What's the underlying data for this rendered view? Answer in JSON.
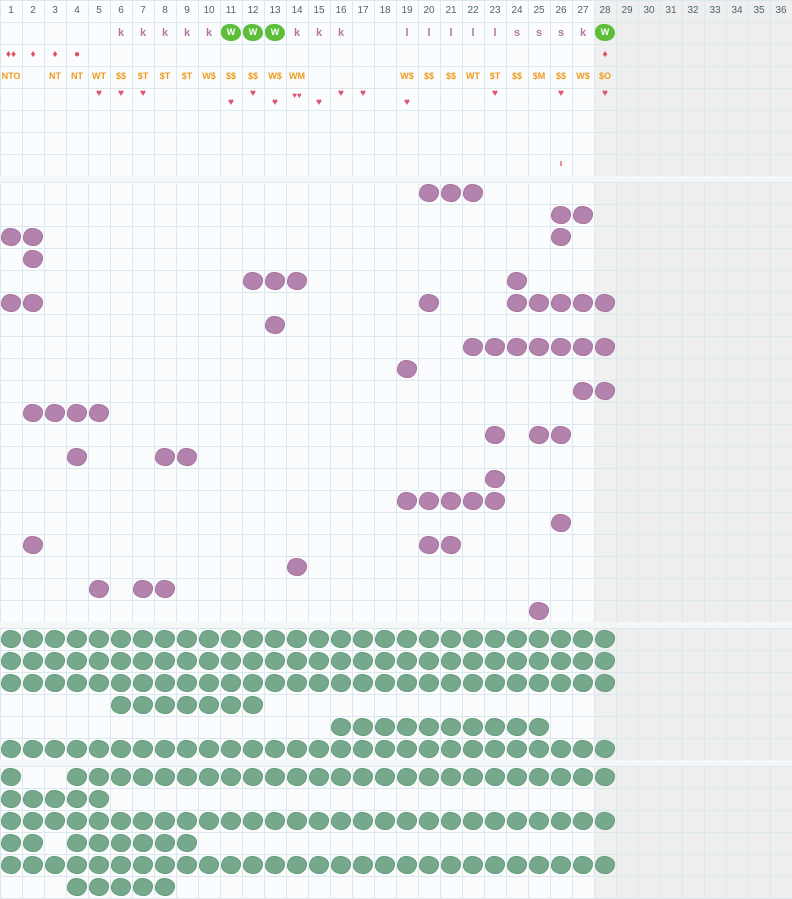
{
  "colors": {
    "grid_line": "#dbe8ee",
    "separator": "#e4ecf0",
    "future_bg": "#eeeeee",
    "k_letter": "#b27aa8",
    "l_letter": "#b27aa8",
    "s_letter": "#b27aa8",
    "w_badge": "#5dbe3a",
    "drop": "#e04e5f",
    "code": "#ef9a1e",
    "heart": "#de5273",
    "purple_blot": "#b383ad",
    "green_blot": "#76a98b"
  },
  "days": [
    "1",
    "2",
    "3",
    "4",
    "5",
    "6",
    "7",
    "8",
    "9",
    "10",
    "11",
    "12",
    "13",
    "14",
    "15",
    "16",
    "17",
    "18",
    "19",
    "20",
    "21",
    "22",
    "23",
    "24",
    "25",
    "26",
    "27",
    "28",
    "29",
    "30",
    "31",
    "32",
    "33",
    "34",
    "35",
    "36"
  ],
  "current_day": 28,
  "last_day": 28,
  "letters": [
    {
      "day": 6,
      "text": "k"
    },
    {
      "day": 7,
      "text": "k"
    },
    {
      "day": 8,
      "text": "k"
    },
    {
      "day": 9,
      "text": "k"
    },
    {
      "day": 10,
      "text": "k"
    },
    {
      "day": 11,
      "text": "W",
      "badge": true
    },
    {
      "day": 12,
      "text": "W",
      "badge": true
    },
    {
      "day": 13,
      "text": "W",
      "badge": true
    },
    {
      "day": 14,
      "text": "k"
    },
    {
      "day": 15,
      "text": "k"
    },
    {
      "day": 16,
      "text": "k"
    },
    {
      "day": 19,
      "text": "l"
    },
    {
      "day": 20,
      "text": "l"
    },
    {
      "day": 21,
      "text": "l"
    },
    {
      "day": 22,
      "text": "l"
    },
    {
      "day": 23,
      "text": "l"
    },
    {
      "day": 24,
      "text": "s"
    },
    {
      "day": 25,
      "text": "s"
    },
    {
      "day": 26,
      "text": "s"
    },
    {
      "day": 27,
      "text": "k"
    },
    {
      "day": 28,
      "text": "W",
      "badge": true
    }
  ],
  "drops": [
    {
      "day": 1,
      "text": "♦♦"
    },
    {
      "day": 2,
      "text": "♦"
    },
    {
      "day": 3,
      "text": "♦"
    },
    {
      "day": 4,
      "text": "●"
    },
    {
      "day": 28,
      "text": "♦"
    }
  ],
  "codes": [
    {
      "day": 1,
      "text": "NTO"
    },
    {
      "day": 3,
      "text": "NT"
    },
    {
      "day": 4,
      "text": "NT"
    },
    {
      "day": 5,
      "text": "WT"
    },
    {
      "day": 6,
      "text": "$$"
    },
    {
      "day": 7,
      "text": "$T"
    },
    {
      "day": 8,
      "text": "$T"
    },
    {
      "day": 9,
      "text": "$T"
    },
    {
      "day": 10,
      "text": "W$"
    },
    {
      "day": 11,
      "text": "$$"
    },
    {
      "day": 12,
      "text": "$$"
    },
    {
      "day": 13,
      "text": "W$"
    },
    {
      "day": 14,
      "text": "WM"
    },
    {
      "day": 19,
      "text": "W$"
    },
    {
      "day": 20,
      "text": "$$"
    },
    {
      "day": 21,
      "text": "$$"
    },
    {
      "day": 22,
      "text": "WT"
    },
    {
      "day": 23,
      "text": "$T"
    },
    {
      "day": 24,
      "text": "$$"
    },
    {
      "day": 25,
      "text": "$M"
    },
    {
      "day": 26,
      "text": "$$"
    },
    {
      "day": 27,
      "text": "W$"
    },
    {
      "day": 28,
      "text": "$O"
    }
  ],
  "hearts": [
    {
      "day": 5,
      "text": "♥",
      "low": false
    },
    {
      "day": 6,
      "text": "♥",
      "low": false
    },
    {
      "day": 7,
      "text": "♥",
      "low": false
    },
    {
      "day": 11,
      "text": "♥",
      "low": true
    },
    {
      "day": 12,
      "text": "♥",
      "low": false
    },
    {
      "day": 13,
      "text": "♥",
      "low": true
    },
    {
      "day": 14,
      "text": "♥♥",
      "low": false
    },
    {
      "day": 15,
      "text": "♥",
      "low": true
    },
    {
      "day": 16,
      "text": "♥",
      "low": false
    },
    {
      "day": 17,
      "text": "♥",
      "low": false
    },
    {
      "day": 19,
      "text": "♥",
      "low": true
    },
    {
      "day": 23,
      "text": "♥",
      "low": false
    },
    {
      "day": 26,
      "text": "♥",
      "low": false
    },
    {
      "day": 28,
      "text": "♥",
      "low": false
    }
  ],
  "small_mark": {
    "day": 26,
    "text": "ı"
  },
  "purple_rows": [
    [
      20,
      21,
      22
    ],
    [
      26,
      27
    ],
    [
      1,
      2,
      26
    ],
    [
      2
    ],
    [
      12,
      13,
      14,
      24
    ],
    [
      1,
      2,
      20,
      24,
      25,
      26,
      27,
      28
    ],
    [
      13
    ],
    [
      22,
      23,
      24,
      25,
      26,
      27,
      28
    ],
    [
      19
    ],
    [
      27,
      28
    ],
    [
      2,
      3,
      4,
      5
    ],
    [
      23,
      25,
      26
    ],
    [
      4,
      8,
      9
    ],
    [
      23
    ],
    [
      19,
      20,
      21,
      22,
      23
    ],
    [
      26
    ],
    [
      2,
      20,
      21
    ],
    [
      14
    ],
    [
      5,
      7,
      8
    ],
    [
      25
    ]
  ],
  "green_rows_a": [
    [
      1,
      2,
      3,
      4,
      5,
      6,
      7,
      8,
      9,
      10,
      11,
      12,
      13,
      14,
      15,
      16,
      17,
      18,
      19,
      20,
      21,
      22,
      23,
      24,
      25,
      26,
      27,
      28
    ],
    [
      1,
      2,
      3,
      4,
      5,
      6,
      7,
      8,
      9,
      10,
      11,
      12,
      13,
      14,
      15,
      16,
      17,
      18,
      19,
      20,
      21,
      22,
      23,
      24,
      25,
      26,
      27,
      28
    ],
    [
      1,
      2,
      3,
      4,
      5,
      6,
      7,
      8,
      9,
      10,
      11,
      12,
      13,
      14,
      15,
      16,
      17,
      18,
      19,
      20,
      21,
      22,
      23,
      24,
      25,
      26,
      27,
      28
    ],
    [
      6,
      7,
      8,
      9,
      10,
      11,
      12
    ],
    [
      16,
      17,
      18,
      19,
      20,
      21,
      22,
      23,
      24,
      25
    ],
    [
      1,
      2,
      3,
      4,
      5,
      6,
      7,
      8,
      9,
      10,
      11,
      12,
      13,
      14,
      15,
      16,
      17,
      18,
      19,
      20,
      21,
      22,
      23,
      24,
      25,
      26,
      27,
      28
    ]
  ],
  "green_rows_b": [
    [
      1,
      4,
      5,
      6,
      7,
      8,
      9,
      10,
      11,
      12,
      13,
      14,
      15,
      16,
      17,
      18,
      19,
      20,
      21,
      22,
      23,
      24,
      25,
      26,
      27,
      28
    ],
    [
      1,
      2,
      3,
      4,
      5
    ],
    [
      1,
      2,
      3,
      4,
      5,
      6,
      7,
      8,
      9,
      10,
      11,
      12,
      13,
      14,
      15,
      16,
      17,
      18,
      19,
      20,
      21,
      22,
      23,
      24,
      25,
      26,
      27,
      28
    ],
    [
      1,
      2,
      4,
      5,
      6,
      7,
      8,
      9
    ],
    [
      1,
      2,
      3,
      4,
      5,
      6,
      7,
      8,
      9,
      10,
      11,
      12,
      13,
      14,
      15,
      16,
      17,
      18,
      19,
      20,
      21,
      22,
      23,
      24,
      25,
      26,
      27,
      28
    ],
    [
      4,
      5,
      6,
      7,
      8
    ]
  ]
}
